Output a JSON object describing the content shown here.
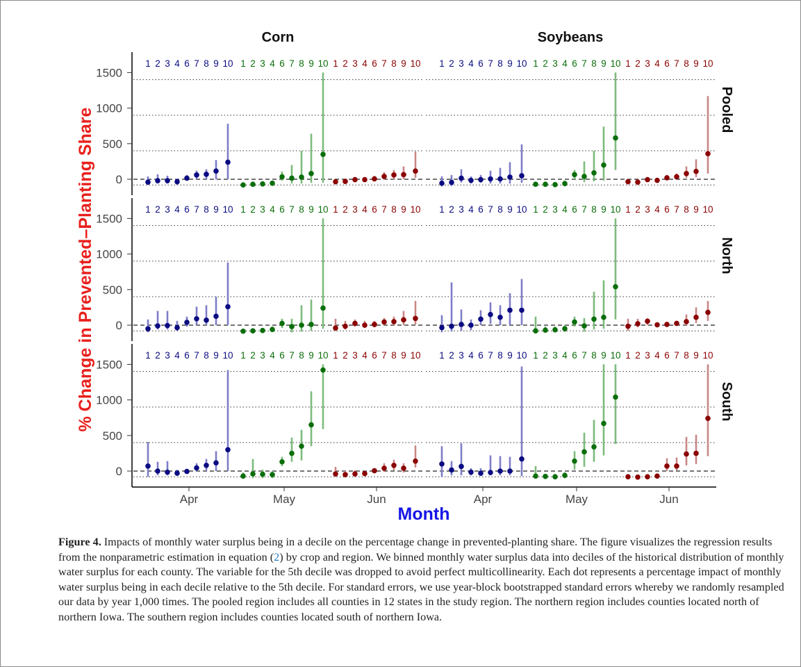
{
  "figure": {
    "crops": [
      "Corn",
      "Soybeans"
    ],
    "regions": [
      "Pooled",
      "North",
      "South"
    ],
    "month_labels": [
      "Apr",
      "May",
      "Jun"
    ],
    "month_colors": [
      "#0b0b82",
      "#0a6e0a",
      "#8b0000"
    ],
    "decile_labels": [
      "1",
      "2",
      "3",
      "4",
      "6",
      "7",
      "8",
      "9",
      "10"
    ],
    "y_label": "% Change in Prevented–Planting Share",
    "x_label": "Month",
    "y_ticks": [
      0,
      500,
      1000,
      1500
    ],
    "y_label_color": "#e8201c",
    "x_label_color": "#1515e6"
  },
  "caption": {
    "label": "Figure 4.",
    "text1": " Impacts of monthly water surplus being in a decile on the percentage change in prevented-planting share. The figure visualizes the regression results from the nonparametric estimation in equation (",
    "ref": "2",
    "text2": ") by crop and region. We binned monthly water surplus data into deciles of the historical distribution of monthly water surplus for each county. The variable for the 5th decile was dropped to avoid perfect multicollinearity. Each dot represents a percentage impact of monthly water surplus being in each decile relative to the 5th decile. For standard errors, we use year-block bootstrapped standard errors whereby we randomly resampled our data by year 1,000 times. The pooled region includes all counties in 12 states in the study region. The northern region includes counties located north of northern Iowa. The southern region includes counties located south of northern Iowa."
  },
  "chart_data": {
    "type": "scatter",
    "subtype": "point-with-error-bars, faceted",
    "ylim": [
      -100,
      1500
    ],
    "reference_line": 0,
    "panels": [
      {
        "crop": "Corn",
        "region": "Pooled",
        "months": [
          {
            "month": "Apr",
            "est": [
              -40,
              -20,
              -20,
              -35,
              15,
              60,
              70,
              115,
              240
            ],
            "lo": [
              -80,
              -60,
              -60,
              -80,
              -20,
              0,
              0,
              0,
              0
            ],
            "hi": [
              40,
              70,
              50,
              10,
              60,
              120,
              140,
              270,
              780
            ]
          },
          {
            "month": "May",
            "est": [
              -80,
              -70,
              -65,
              -55,
              35,
              15,
              30,
              80,
              350
            ],
            "lo": [
              -100,
              -100,
              -100,
              -95,
              -20,
              -60,
              -60,
              -50,
              -50
            ],
            "hi": [
              -50,
              -40,
              -30,
              -20,
              110,
              200,
              400,
              640,
              1500
            ]
          },
          {
            "month": "Jun",
            "est": [
              -35,
              -30,
              -5,
              -5,
              5,
              40,
              60,
              65,
              115
            ],
            "lo": [
              -70,
              -70,
              -40,
              -40,
              -30,
              -5,
              0,
              0,
              20
            ],
            "hi": [
              0,
              10,
              30,
              30,
              50,
              100,
              130,
              180,
              390
            ]
          }
        ]
      },
      {
        "crop": "Soybeans",
        "region": "Pooled",
        "months": [
          {
            "month": "Apr",
            "est": [
              -55,
              -45,
              15,
              -15,
              -5,
              5,
              5,
              30,
              50
            ],
            "lo": [
              -100,
              -95,
              -45,
              -60,
              -50,
              -60,
              -60,
              -60,
              -50
            ],
            "hi": [
              40,
              60,
              140,
              40,
              60,
              120,
              160,
              240,
              490
            ]
          },
          {
            "month": "May",
            "est": [
              -70,
              -70,
              -75,
              -60,
              65,
              40,
              90,
              200,
              580
            ],
            "lo": [
              -100,
              -100,
              -100,
              -100,
              0,
              -40,
              -30,
              -20,
              130
            ],
            "hi": [
              -40,
              -40,
              -50,
              -20,
              130,
              250,
              400,
              740,
              1500
            ]
          },
          {
            "month": "Jun",
            "est": [
              -35,
              -40,
              -5,
              -15,
              20,
              35,
              80,
              110,
              360
            ],
            "lo": [
              -70,
              -80,
              -40,
              -50,
              -10,
              0,
              20,
              30,
              80
            ],
            "hi": [
              0,
              0,
              30,
              20,
              60,
              80,
              180,
              280,
              1170
            ]
          }
        ]
      },
      {
        "crop": "Corn",
        "region": "North",
        "months": [
          {
            "month": "Apr",
            "est": [
              -50,
              -10,
              -5,
              -35,
              40,
              90,
              70,
              125,
              260
            ],
            "lo": [
              -100,
              -60,
              -60,
              -80,
              -20,
              0,
              0,
              0,
              0
            ],
            "hi": [
              80,
              200,
              200,
              60,
              120,
              260,
              280,
              400,
              880
            ]
          },
          {
            "month": "May",
            "est": [
              -85,
              -80,
              -75,
              -60,
              25,
              -20,
              0,
              10,
              240
            ],
            "lo": [
              -100,
              -100,
              -100,
              -95,
              -40,
              -100,
              -90,
              -80,
              -50
            ],
            "hi": [
              -60,
              -50,
              -40,
              -20,
              90,
              90,
              280,
              360,
              1500
            ]
          },
          {
            "month": "Jun",
            "est": [
              -40,
              -15,
              25,
              0,
              10,
              45,
              50,
              75,
              95
            ],
            "lo": [
              -80,
              -60,
              -20,
              -40,
              -30,
              0,
              0,
              0,
              10
            ],
            "hi": [
              90,
              60,
              80,
              60,
              60,
              100,
              120,
              200,
              340
            ]
          }
        ]
      },
      {
        "crop": "Soybeans",
        "region": "North",
        "months": [
          {
            "month": "Apr",
            "est": [
              -35,
              -15,
              10,
              0,
              85,
              150,
              110,
              210,
              210
            ],
            "lo": [
              -100,
              -90,
              -80,
              -70,
              0,
              20,
              0,
              0,
              0
            ],
            "hi": [
              140,
              600,
              220,
              80,
              210,
              320,
              280,
              450,
              650
            ]
          },
          {
            "month": "May",
            "est": [
              -80,
              -70,
              -65,
              -50,
              45,
              -10,
              85,
              110,
              540
            ],
            "lo": [
              -100,
              -100,
              -100,
              -95,
              -20,
              -90,
              -60,
              -50,
              80
            ],
            "hi": [
              120,
              -20,
              -20,
              0,
              120,
              100,
              470,
              630,
              1500
            ]
          },
          {
            "month": "Jun",
            "est": [
              -15,
              20,
              55,
              5,
              10,
              25,
              50,
              110,
              180
            ],
            "lo": [
              -80,
              -30,
              0,
              -30,
              -20,
              -10,
              0,
              30,
              60
            ],
            "hi": [
              90,
              90,
              100,
              40,
              40,
              60,
              150,
              250,
              340
            ]
          }
        ]
      },
      {
        "crop": "Corn",
        "region": "South",
        "months": [
          {
            "month": "Apr",
            "est": [
              70,
              0,
              -15,
              -30,
              -5,
              45,
              80,
              115,
              300
            ],
            "lo": [
              -80,
              -60,
              -60,
              -60,
              -40,
              0,
              0,
              0,
              0
            ],
            "hi": [
              410,
              130,
              140,
              20,
              30,
              110,
              170,
              280,
              1420
            ]
          },
          {
            "month": "May",
            "est": [
              -70,
              -40,
              -45,
              -50,
              130,
              250,
              350,
              650,
              1420
            ],
            "lo": [
              -100,
              -100,
              -100,
              -100,
              70,
              130,
              150,
              350,
              590
            ],
            "hi": [
              -20,
              170,
              20,
              0,
              200,
              470,
              580,
              1120,
              1500
            ]
          },
          {
            "month": "Jun",
            "est": [
              -40,
              -50,
              -40,
              -35,
              5,
              40,
              80,
              40,
              140
            ],
            "lo": [
              -80,
              -90,
              -80,
              -70,
              -30,
              -10,
              10,
              -20,
              50
            ],
            "hi": [
              60,
              0,
              10,
              0,
              40,
              110,
              160,
              110,
              360
            ]
          }
        ]
      },
      {
        "crop": "Soybeans",
        "region": "South",
        "months": [
          {
            "month": "Apr",
            "est": [
              100,
              15,
              65,
              -15,
              -30,
              -20,
              0,
              0,
              170
            ],
            "lo": [
              -80,
              -60,
              -60,
              -60,
              -70,
              -60,
              -60,
              -60,
              -70
            ],
            "hi": [
              350,
              140,
              390,
              40,
              40,
              220,
              210,
              200,
              1470
            ]
          },
          {
            "month": "May",
            "est": [
              -70,
              -75,
              -80,
              -60,
              140,
              270,
              340,
              670,
              1040
            ],
            "lo": [
              -100,
              -100,
              -100,
              -100,
              20,
              60,
              130,
              220,
              380
            ],
            "hi": [
              70,
              -40,
              -40,
              -20,
              280,
              540,
              720,
              1500,
              1500
            ]
          },
          {
            "month": "Jun",
            "est": [
              -80,
              -85,
              -80,
              -70,
              70,
              70,
              240,
              250,
              740
            ],
            "lo": [
              -100,
              -100,
              -100,
              -100,
              0,
              10,
              80,
              100,
              210
            ],
            "hi": [
              -50,
              -60,
              -50,
              -40,
              180,
              190,
              480,
              510,
              1500
            ]
          }
        ]
      }
    ]
  }
}
